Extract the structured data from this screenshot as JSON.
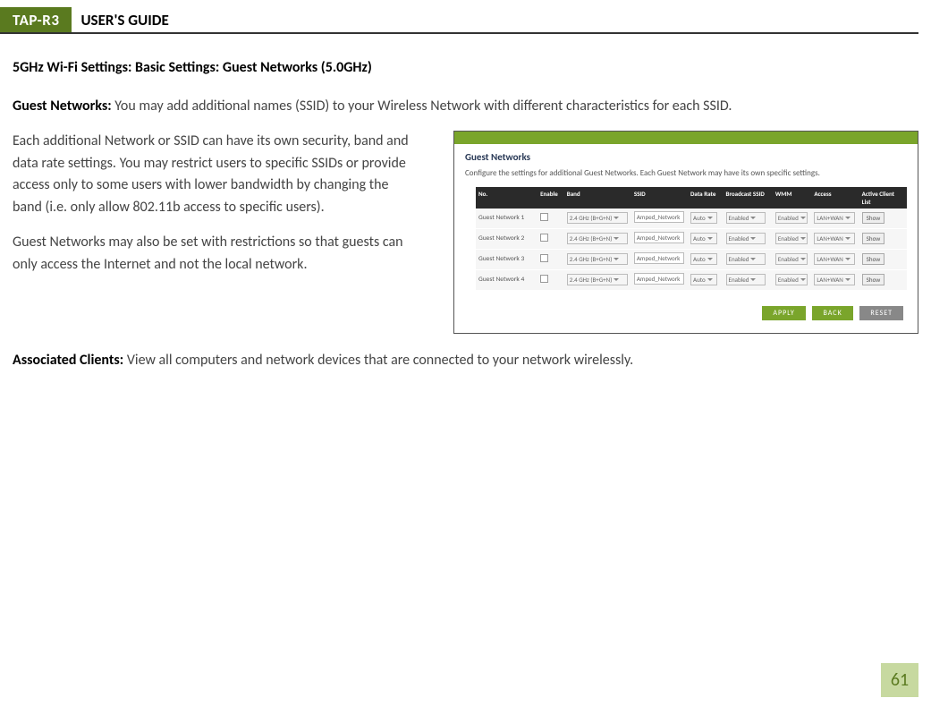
{
  "header": {
    "badge": "TAP-R3",
    "title": "USER'S GUIDE"
  },
  "section_title": "5GHz Wi-Fi Settings: Basic Settings: Guest Networks (5.0GHz)",
  "p1_bold": "Guest Networks: ",
  "p1_text": "You may add additional names (SSID) to your Wireless Network with different characteristics for each SSID.",
  "p2_text": "Each additional Network or SSID can have its own security, band and data rate settings. You may restrict users to specific SSIDs or provide access only to some users with lower bandwidth by changing the band (i.e. only allow 802.11b access to specific users).",
  "p3_text": "Guest Networks may also be set with restrictions so that guests can only access the Internet and not the local network.",
  "p4_bold": "Associated Clients: ",
  "p4_text": "View all computers and network devices that are connected to your network wirelessly.",
  "screenshot": {
    "heading": "Guest Networks",
    "sub": "Configure the settings for additional Guest Networks. Each Guest Network may have its own specific settings.",
    "columns": {
      "no": "No.",
      "enable": "Enable",
      "band": "Band",
      "ssid": "SSID",
      "rate": "Data Rate",
      "bcast": "Broadcast SSID",
      "wmm": "WMM",
      "access": "Access",
      "client": "Active Client List"
    },
    "rows": [
      {
        "no": "Guest Network 1",
        "band": "2.4 GHz (B+G+N)",
        "ssid": "Amped_Network",
        "rate": "Auto",
        "bcast": "Enabled",
        "wmm": "Enabled",
        "access": "LAN+WAN",
        "btn": "Show"
      },
      {
        "no": "Guest Network 2",
        "band": "2.4 GHz (B+G+N)",
        "ssid": "Amped_Network",
        "rate": "Auto",
        "bcast": "Enabled",
        "wmm": "Enabled",
        "access": "LAN+WAN",
        "btn": "Show"
      },
      {
        "no": "Guest Network 3",
        "band": "2.4 GHz (B+G+N)",
        "ssid": "Amped_Network",
        "rate": "Auto",
        "bcast": "Enabled",
        "wmm": "Enabled",
        "access": "LAN+WAN",
        "btn": "Show"
      },
      {
        "no": "Guest Network 4",
        "band": "2.4 GHz (B+G+N)",
        "ssid": "Amped_Network",
        "rate": "Auto",
        "bcast": "Enabled",
        "wmm": "Enabled",
        "access": "LAN+WAN",
        "btn": "Show"
      }
    ],
    "buttons": {
      "apply": "APPLY",
      "back": "BACK",
      "reset": "RESET"
    }
  },
  "page_number": "61"
}
